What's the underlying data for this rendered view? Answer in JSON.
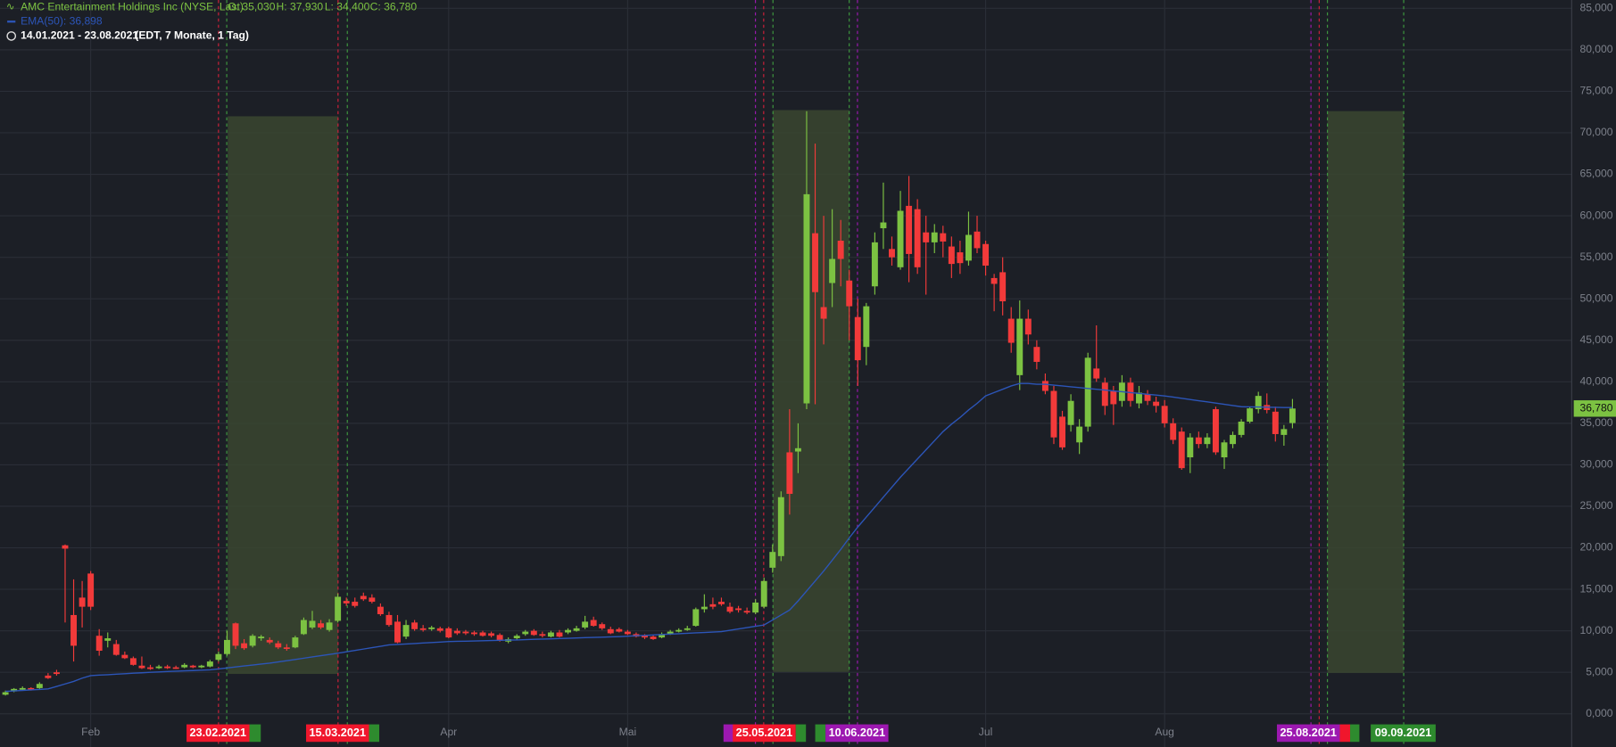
{
  "header": {
    "title": "AMC Entertainment Holdings Inc (NYSE, Last)",
    "ohlc_text": [
      "O: 35,030",
      "H: 37,930",
      "L: 34,400",
      "C: 36,780"
    ],
    "ema_label": "EMA(50): 36,898",
    "range": "14.01.2021 - 23.08.2021",
    "range_info": "(EDT, 7 Monate, 1 Tag)"
  },
  "date_markers": [
    {
      "label": "23.02.2021",
      "color": "#f0162c"
    },
    {
      "label": "15.03.2021",
      "color": "#f0162c"
    },
    {
      "label": "25.05.2021",
      "color": "#f0162c"
    },
    {
      "label": "10.06.2021",
      "color": "#9c18b0"
    },
    {
      "label": "25.08.2021",
      "color": "#9c18b0"
    },
    {
      "label": "09.09.2021",
      "color": "#2e8b2e"
    }
  ],
  "chart_data": {
    "type": "candlestick",
    "categories": [
      null,
      null,
      null,
      null,
      null,
      null,
      null,
      null,
      null,
      null,
      "Feb",
      null,
      null,
      null,
      null,
      null,
      null,
      null,
      null,
      null,
      null,
      null,
      null,
      null,
      null,
      null,
      null,
      null,
      null,
      null,
      null,
      null,
      null,
      null,
      null,
      null,
      null,
      null,
      null,
      null,
      null,
      null,
      null,
      null,
      null,
      null,
      null,
      null,
      null,
      null,
      null,
      null,
      "Apr",
      null,
      null,
      null,
      null,
      null,
      null,
      null,
      null,
      null,
      null,
      null,
      null,
      null,
      null,
      null,
      null,
      null,
      null,
      null,
      null,
      "Mai",
      null,
      null,
      null,
      null,
      null,
      null,
      null,
      null,
      null,
      null,
      null,
      null,
      null,
      null,
      null,
      null,
      null,
      null,
      null,
      null,
      null,
      null,
      null,
      null,
      null,
      null,
      null,
      null,
      null,
      null,
      null,
      null,
      null,
      null,
      null,
      null,
      null,
      null,
      null,
      null,
      null,
      "Jul",
      null,
      null,
      null,
      null,
      null,
      null,
      null,
      null,
      null,
      null,
      null,
      null,
      null,
      null,
      null,
      null,
      null,
      null,
      null,
      null,
      "Aug",
      null,
      null,
      null,
      null,
      null,
      null,
      null,
      null,
      null,
      null,
      null,
      null,
      null,
      null,
      null
    ],
    "ohlc": [
      [
        2.3,
        2.8,
        2.2,
        2.6
      ],
      [
        2.7,
        3.1,
        2.6,
        3.0
      ],
      [
        2.9,
        3.3,
        2.8,
        3.1
      ],
      [
        3.1,
        3.2,
        2.8,
        2.9
      ],
      [
        3.1,
        3.8,
        3.0,
        3.6
      ],
      [
        4.6,
        4.9,
        4.2,
        4.3
      ],
      [
        5.0,
        5.3,
        4.6,
        4.8
      ],
      [
        20.3,
        20.4,
        11.0,
        19.9
      ],
      [
        11.9,
        16.2,
        6.3,
        8.2
      ],
      [
        14.0,
        16.0,
        10.4,
        12.9
      ],
      [
        16.9,
        17.2,
        12.5,
        12.9
      ],
      [
        9.4,
        10.2,
        7.0,
        7.6
      ],
      [
        8.8,
        9.8,
        8.0,
        9.1
      ],
      [
        8.4,
        8.9,
        7.0,
        7.1
      ],
      [
        7.1,
        7.5,
        6.6,
        6.7
      ],
      [
        6.7,
        6.9,
        5.8,
        5.9
      ],
      [
        5.8,
        6.9,
        5.4,
        5.5
      ],
      [
        5.6,
        5.9,
        5.3,
        5.4
      ],
      [
        5.5,
        5.9,
        5.4,
        5.7
      ],
      [
        5.7,
        5.9,
        5.4,
        5.5
      ],
      [
        5.6,
        5.8,
        5.4,
        5.5
      ],
      [
        5.6,
        6.1,
        5.5,
        5.9
      ],
      [
        5.8,
        5.9,
        5.5,
        5.6
      ],
      [
        5.6,
        5.9,
        5.5,
        5.8
      ],
      [
        5.7,
        6.5,
        5.6,
        6.3
      ],
      [
        6.5,
        7.5,
        6.3,
        7.2
      ],
      [
        7.2,
        10.0,
        7.0,
        8.9
      ],
      [
        10.9,
        11.0,
        7.8,
        8.2
      ],
      [
        8.5,
        9.0,
        7.7,
        7.9
      ],
      [
        8.2,
        9.6,
        8.0,
        9.4
      ],
      [
        9.1,
        9.5,
        8.8,
        9.3
      ],
      [
        8.9,
        9.2,
        8.4,
        8.6
      ],
      [
        8.5,
        8.8,
        7.8,
        8.0
      ],
      [
        8.0,
        8.4,
        7.6,
        7.9
      ],
      [
        8.0,
        9.4,
        7.9,
        9.2
      ],
      [
        9.6,
        11.6,
        9.5,
        11.3
      ],
      [
        10.4,
        12.4,
        10.2,
        11.2
      ],
      [
        10.9,
        11.3,
        10.2,
        10.4
      ],
      [
        10.1,
        11.4,
        9.9,
        11.0
      ],
      [
        11.2,
        14.5,
        11.0,
        14.1
      ],
      [
        13.6,
        14.0,
        13.0,
        13.3
      ],
      [
        13.5,
        14.0,
        12.8,
        13.0
      ],
      [
        14.2,
        14.6,
        13.6,
        13.8
      ],
      [
        14.0,
        14.4,
        13.3,
        13.5
      ],
      [
        12.9,
        13.3,
        11.8,
        12.0
      ],
      [
        11.9,
        12.3,
        10.5,
        10.7
      ],
      [
        11.1,
        11.9,
        8.5,
        8.6
      ],
      [
        9.3,
        11.3,
        9.0,
        10.7
      ],
      [
        11.0,
        11.3,
        10.0,
        10.2
      ],
      [
        10.3,
        10.7,
        9.9,
        10.1
      ],
      [
        10.2,
        10.6,
        10.0,
        10.4
      ],
      [
        10.3,
        10.5,
        9.8,
        10.0
      ],
      [
        10.3,
        10.5,
        9.1,
        9.2
      ],
      [
        10.0,
        10.3,
        9.5,
        9.7
      ],
      [
        9.9,
        10.1,
        9.5,
        9.7
      ],
      [
        9.8,
        10.0,
        9.4,
        9.6
      ],
      [
        9.8,
        10.0,
        9.3,
        9.4
      ],
      [
        9.7,
        9.9,
        9.2,
        9.4
      ],
      [
        9.5,
        9.7,
        8.7,
        8.8
      ],
      [
        8.7,
        9.2,
        8.5,
        9.0
      ],
      [
        9.1,
        9.6,
        8.9,
        9.4
      ],
      [
        9.6,
        10.1,
        9.4,
        9.9
      ],
      [
        10.0,
        10.2,
        9.4,
        9.5
      ],
      [
        9.6,
        9.9,
        9.2,
        9.4
      ],
      [
        9.3,
        10.0,
        9.2,
        9.8
      ],
      [
        9.8,
        10.1,
        9.2,
        9.3
      ],
      [
        9.8,
        10.3,
        9.6,
        10.1
      ],
      [
        10.0,
        10.6,
        9.9,
        10.3
      ],
      [
        10.4,
        11.8,
        10.2,
        11.1
      ],
      [
        11.3,
        11.7,
        10.5,
        10.6
      ],
      [
        10.8,
        11.0,
        10.1,
        10.3
      ],
      [
        10.2,
        10.5,
        9.6,
        9.7
      ],
      [
        10.2,
        10.4,
        9.8,
        9.9
      ],
      [
        9.9,
        10.1,
        9.5,
        9.6
      ],
      [
        9.6,
        9.8,
        9.2,
        9.3
      ],
      [
        9.4,
        9.6,
        9.0,
        9.2
      ],
      [
        9.3,
        9.5,
        8.9,
        9.0
      ],
      [
        9.2,
        9.8,
        9.1,
        9.6
      ],
      [
        9.6,
        10.1,
        9.5,
        9.9
      ],
      [
        9.9,
        10.3,
        9.8,
        10.1
      ],
      [
        10.1,
        10.6,
        10.0,
        10.3
      ],
      [
        10.6,
        12.8,
        10.5,
        12.6
      ],
      [
        12.6,
        14.4,
        12.2,
        12.9
      ],
      [
        13.2,
        14.0,
        12.6,
        12.9
      ],
      [
        13.5,
        14.0,
        13.0,
        13.2
      ],
      [
        12.9,
        13.4,
        12.1,
        12.3
      ],
      [
        12.7,
        13.0,
        12.2,
        12.5
      ],
      [
        12.4,
        12.8,
        12.0,
        12.2
      ],
      [
        12.2,
        13.8,
        12.0,
        13.4
      ],
      [
        12.9,
        16.4,
        12.7,
        16.0
      ],
      [
        17.6,
        20.4,
        17.0,
        19.5
      ],
      [
        19.0,
        26.8,
        18.4,
        26.1
      ],
      [
        31.5,
        36.7,
        24.0,
        26.5
      ],
      [
        31.6,
        35.0,
        29.0,
        32.0
      ],
      [
        37.4,
        72.6,
        36.7,
        62.6
      ],
      [
        57.9,
        68.7,
        37.3,
        50.8
      ],
      [
        49.0,
        60.0,
        44.5,
        47.6
      ],
      [
        51.9,
        60.8,
        49.0,
        54.8
      ],
      [
        57.0,
        59.5,
        51.5,
        54.8
      ],
      [
        52.2,
        53.5,
        45.0,
        49.1
      ],
      [
        47.8,
        50.0,
        39.5,
        42.6
      ],
      [
        44.2,
        49.5,
        42.0,
        49.1
      ],
      [
        51.5,
        58.0,
        50.5,
        56.8
      ],
      [
        58.5,
        64.0,
        56.0,
        59.2
      ],
      [
        56.0,
        57.5,
        54.0,
        55.0
      ],
      [
        53.8,
        63.0,
        53.5,
        60.6
      ],
      [
        61.2,
        64.8,
        52.0,
        55.4
      ],
      [
        60.8,
        62.0,
        53.0,
        53.8
      ],
      [
        58.0,
        60.0,
        50.5,
        56.8
      ],
      [
        56.8,
        59.0,
        55.5,
        58.0
      ],
      [
        57.9,
        58.8,
        55.0,
        56.9
      ],
      [
        56.3,
        57.5,
        52.5,
        54.2
      ],
      [
        55.6,
        57.0,
        53.0,
        54.3
      ],
      [
        54.6,
        60.5,
        54.0,
        57.7
      ],
      [
        58.1,
        60.0,
        55.5,
        56.1
      ],
      [
        56.6,
        57.0,
        52.8,
        54.0
      ],
      [
        52.5,
        53.0,
        48.5,
        51.8
      ],
      [
        53.2,
        55.0,
        48.0,
        49.7
      ],
      [
        47.6,
        49.0,
        43.5,
        44.7
      ],
      [
        40.8,
        49.8,
        39.0,
        47.6
      ],
      [
        47.6,
        48.7,
        44.5,
        45.7
      ],
      [
        44.2,
        45.0,
        41.5,
        42.4
      ],
      [
        40.1,
        41.0,
        38.5,
        38.9
      ],
      [
        38.9,
        39.5,
        32.5,
        33.3
      ],
      [
        35.8,
        36.5,
        31.8,
        32.1
      ],
      [
        34.8,
        38.5,
        34.0,
        37.7
      ],
      [
        32.7,
        35.5,
        31.3,
        34.6
      ],
      [
        34.6,
        43.5,
        34.0,
        42.9
      ],
      [
        41.6,
        46.8,
        40.0,
        40.4
      ],
      [
        39.9,
        40.5,
        36.0,
        37.1
      ],
      [
        38.9,
        39.5,
        34.8,
        37.3
      ],
      [
        37.7,
        40.8,
        37.0,
        39.9
      ],
      [
        39.9,
        40.5,
        37.0,
        37.7
      ],
      [
        37.4,
        39.5,
        36.8,
        38.7
      ],
      [
        38.5,
        39.0,
        37.2,
        37.7
      ],
      [
        37.6,
        38.2,
        36.3,
        37.1
      ],
      [
        37.1,
        37.8,
        34.5,
        35.0
      ],
      [
        35.0,
        35.6,
        32.5,
        33.0
      ],
      [
        34.0,
        34.5,
        29.4,
        29.6
      ],
      [
        30.9,
        33.8,
        29.0,
        33.3
      ],
      [
        33.3,
        34.0,
        32.0,
        32.5
      ],
      [
        32.5,
        33.8,
        32.0,
        33.3
      ],
      [
        36.7,
        37.0,
        31.2,
        31.5
      ],
      [
        30.9,
        33.0,
        29.5,
        32.7
      ],
      [
        32.5,
        34.0,
        32.0,
        33.6
      ],
      [
        33.6,
        35.5,
        33.3,
        35.2
      ],
      [
        35.2,
        37.0,
        35.0,
        36.8
      ],
      [
        36.7,
        38.8,
        36.2,
        38.3
      ],
      [
        37.2,
        38.6,
        36.2,
        36.6
      ],
      [
        36.4,
        37.0,
        32.8,
        33.7
      ],
      [
        33.6,
        34.8,
        32.3,
        34.3
      ],
      [
        35.03,
        37.93,
        34.4,
        36.78
      ]
    ],
    "up_color": "#7cc242",
    "down_color": "#f23a3a",
    "ema": {
      "name": "EMA(50)",
      "color": "#2c55b8",
      "values": [
        2.7,
        2.76,
        2.82,
        2.88,
        2.94,
        3.0,
        3.3,
        3.6,
        3.9,
        4.3,
        4.6,
        4.66,
        4.71,
        4.77,
        4.83,
        4.89,
        4.94,
        5.0,
        5.04,
        5.09,
        5.13,
        5.17,
        5.21,
        5.26,
        5.3,
        5.41,
        5.53,
        5.64,
        5.76,
        5.87,
        5.99,
        6.1,
        6.25,
        6.4,
        6.55,
        6.7,
        6.85,
        7.0,
        7.15,
        7.3,
        7.47,
        7.63,
        7.8,
        7.97,
        8.13,
        8.3,
        8.36,
        8.41,
        8.47,
        8.53,
        8.59,
        8.64,
        8.7,
        8.73,
        8.75,
        8.78,
        8.8,
        8.83,
        8.85,
        8.88,
        8.9,
        8.93,
        8.97,
        9.0,
        9.03,
        9.07,
        9.1,
        9.13,
        9.17,
        9.2,
        9.23,
        9.27,
        9.3,
        9.35,
        9.4,
        9.45,
        9.5,
        9.55,
        9.6,
        9.65,
        9.7,
        9.75,
        9.8,
        9.85,
        9.9,
        10.06,
        10.22,
        10.38,
        10.54,
        10.7,
        11.3,
        11.9,
        12.5,
        13.6,
        14.8,
        16.0,
        17.2,
        18.5,
        19.8,
        21.2,
        22.5,
        23.7,
        24.9,
        26.1,
        27.3,
        28.5,
        29.6,
        30.7,
        31.8,
        32.9,
        34.0,
        34.9,
        35.7,
        36.6,
        37.4,
        38.3,
        38.7,
        39.1,
        39.5,
        39.8,
        39.8,
        39.7,
        39.7,
        39.6,
        39.5,
        39.4,
        39.3,
        39.2,
        39.1,
        39.0,
        38.9,
        38.8,
        38.7,
        38.6,
        38.5,
        38.4,
        38.3,
        38.16,
        38.01,
        37.87,
        37.72,
        37.58,
        37.43,
        37.29,
        37.14,
        37.0,
        36.98,
        36.96,
        36.94,
        36.92,
        36.9,
        36.898
      ]
    },
    "last_label": "36,780",
    "ylim": [
      -4,
      86
    ],
    "yticks": [
      {
        "value": 0,
        "label": "0,000"
      },
      {
        "value": 5,
        "label": "5,000"
      },
      {
        "value": 10,
        "label": "10,000"
      },
      {
        "value": 15,
        "label": "15,000"
      },
      {
        "value": 20,
        "label": "20,000"
      },
      {
        "value": 25,
        "label": "25,000"
      },
      {
        "value": 30,
        "label": "30,000"
      },
      {
        "value": 35,
        "label": "35,000"
      },
      {
        "value": 40,
        "label": "40,000"
      },
      {
        "value": 45,
        "label": "45,000"
      },
      {
        "value": 50,
        "label": "50,000"
      },
      {
        "value": 55,
        "label": "55,000"
      },
      {
        "value": 60,
        "label": "60,000"
      },
      {
        "value": 65,
        "label": "65,000"
      },
      {
        "value": 70,
        "label": "70,000"
      },
      {
        "value": 75,
        "label": "75,000"
      },
      {
        "value": 80,
        "label": "80,000"
      },
      {
        "value": 85,
        "label": "85,000"
      }
    ],
    "grid": true
  }
}
